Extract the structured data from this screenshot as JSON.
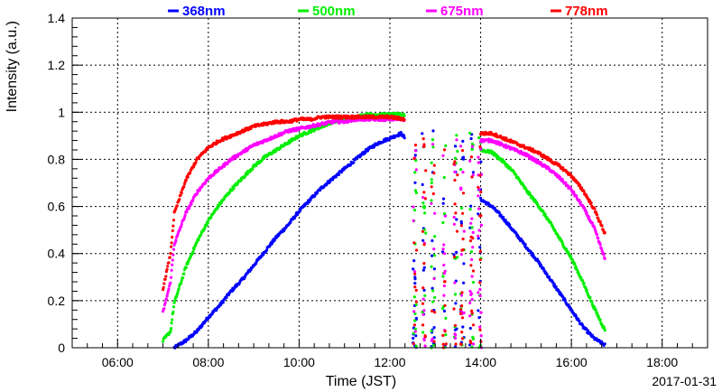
{
  "chart_data": {
    "type": "scatter",
    "title": "",
    "xlabel": "Time (JST)",
    "ylabel": "Intensity (a.u.)",
    "date_label": "2017-01-31",
    "xlim": [
      "05:00",
      "19:00"
    ],
    "ylim": [
      0,
      1.4
    ],
    "x_ticks": [
      "06:00",
      "08:00",
      "10:00",
      "12:00",
      "14:00",
      "16:00",
      "18:00"
    ],
    "y_ticks": [
      "0",
      "0.2",
      "0.4",
      "0.6",
      "0.8",
      "1",
      "1.2",
      "1.4"
    ],
    "grid": true,
    "legend_position": "top",
    "series": [
      {
        "name": "368nm",
        "color": "#0000ff",
        "points": [
          [
            "07:15",
            0.0
          ],
          [
            "07:30",
            0.03
          ],
          [
            "07:45",
            0.07
          ],
          [
            "08:00",
            0.13
          ],
          [
            "08:15",
            0.18
          ],
          [
            "08:30",
            0.24
          ],
          [
            "08:45",
            0.29
          ],
          [
            "09:00",
            0.35
          ],
          [
            "09:15",
            0.41
          ],
          [
            "09:30",
            0.47
          ],
          [
            "09:45",
            0.52
          ],
          [
            "10:00",
            0.58
          ],
          [
            "10:15",
            0.63
          ],
          [
            "10:30",
            0.68
          ],
          [
            "10:45",
            0.72
          ],
          [
            "11:00",
            0.76
          ],
          [
            "11:15",
            0.8
          ],
          [
            "11:30",
            0.84
          ],
          [
            "11:45",
            0.87
          ],
          [
            "12:00",
            0.89
          ],
          [
            "12:15",
            0.91
          ],
          [
            "12:20",
            0.89
          ],
          [
            "14:00",
            0.63
          ],
          [
            "14:15",
            0.6
          ],
          [
            "14:30",
            0.55
          ],
          [
            "14:45",
            0.49
          ],
          [
            "15:00",
            0.43
          ],
          [
            "15:15",
            0.37
          ],
          [
            "15:30",
            0.3
          ],
          [
            "15:45",
            0.23
          ],
          [
            "16:00",
            0.16
          ],
          [
            "16:15",
            0.09
          ],
          [
            "16:30",
            0.04
          ],
          [
            "16:45",
            0.01
          ]
        ]
      },
      {
        "name": "500nm",
        "color": "#00ee00",
        "points": [
          [
            "07:00",
            0.03
          ],
          [
            "07:10",
            0.07
          ],
          [
            "07:15",
            0.19
          ],
          [
            "07:30",
            0.34
          ],
          [
            "07:45",
            0.45
          ],
          [
            "08:00",
            0.54
          ],
          [
            "08:15",
            0.61
          ],
          [
            "08:30",
            0.67
          ],
          [
            "08:45",
            0.72
          ],
          [
            "09:00",
            0.77
          ],
          [
            "09:15",
            0.81
          ],
          [
            "09:30",
            0.84
          ],
          [
            "09:45",
            0.87
          ],
          [
            "10:00",
            0.9
          ],
          [
            "10:15",
            0.92
          ],
          [
            "10:30",
            0.94
          ],
          [
            "10:45",
            0.96
          ],
          [
            "11:00",
            0.97
          ],
          [
            "11:15",
            0.98
          ],
          [
            "11:30",
            0.99
          ],
          [
            "11:45",
            0.99
          ],
          [
            "12:00",
            0.99
          ],
          [
            "12:20",
            0.99
          ],
          [
            "14:00",
            0.84
          ],
          [
            "14:15",
            0.83
          ],
          [
            "14:30",
            0.79
          ],
          [
            "14:45",
            0.74
          ],
          [
            "15:00",
            0.67
          ],
          [
            "15:15",
            0.61
          ],
          [
            "15:30",
            0.54
          ],
          [
            "15:45",
            0.46
          ],
          [
            "16:00",
            0.38
          ],
          [
            "16:15",
            0.28
          ],
          [
            "16:30",
            0.17
          ],
          [
            "16:45",
            0.07
          ]
        ]
      },
      {
        "name": "675nm",
        "color": "#ff00ff",
        "points": [
          [
            "07:00",
            0.15
          ],
          [
            "07:10",
            0.28
          ],
          [
            "07:15",
            0.44
          ],
          [
            "07:30",
            0.57
          ],
          [
            "07:45",
            0.66
          ],
          [
            "08:00",
            0.72
          ],
          [
            "08:15",
            0.76
          ],
          [
            "08:30",
            0.8
          ],
          [
            "08:45",
            0.83
          ],
          [
            "09:00",
            0.86
          ],
          [
            "09:15",
            0.88
          ],
          [
            "09:30",
            0.9
          ],
          [
            "09:45",
            0.92
          ],
          [
            "10:00",
            0.93
          ],
          [
            "10:15",
            0.94
          ],
          [
            "10:30",
            0.95
          ],
          [
            "10:45",
            0.96
          ],
          [
            "11:00",
            0.96
          ],
          [
            "11:15",
            0.97
          ],
          [
            "11:30",
            0.97
          ],
          [
            "11:45",
            0.97
          ],
          [
            "12:00",
            0.97
          ],
          [
            "12:20",
            0.97
          ],
          [
            "14:00",
            0.88
          ],
          [
            "14:15",
            0.88
          ],
          [
            "14:30",
            0.86
          ],
          [
            "14:45",
            0.84
          ],
          [
            "15:00",
            0.82
          ],
          [
            "15:15",
            0.79
          ],
          [
            "15:30",
            0.76
          ],
          [
            "15:45",
            0.72
          ],
          [
            "16:00",
            0.67
          ],
          [
            "16:15",
            0.6
          ],
          [
            "16:30",
            0.51
          ],
          [
            "16:45",
            0.37
          ]
        ]
      },
      {
        "name": "778nm",
        "color": "#ff0000",
        "points": [
          [
            "07:00",
            0.25
          ],
          [
            "07:10",
            0.4
          ],
          [
            "07:15",
            0.57
          ],
          [
            "07:30",
            0.71
          ],
          [
            "07:45",
            0.8
          ],
          [
            "08:00",
            0.85
          ],
          [
            "08:15",
            0.88
          ],
          [
            "08:30",
            0.9
          ],
          [
            "08:45",
            0.92
          ],
          [
            "09:00",
            0.94
          ],
          [
            "09:15",
            0.95
          ],
          [
            "09:30",
            0.96
          ],
          [
            "09:45",
            0.96
          ],
          [
            "10:00",
            0.97
          ],
          [
            "10:15",
            0.97
          ],
          [
            "10:30",
            0.98
          ],
          [
            "10:45",
            0.98
          ],
          [
            "11:00",
            0.98
          ],
          [
            "11:15",
            0.98
          ],
          [
            "11:30",
            0.98
          ],
          [
            "11:45",
            0.98
          ],
          [
            "12:00",
            0.98
          ],
          [
            "12:20",
            0.97
          ],
          [
            "14:00",
            0.91
          ],
          [
            "14:15",
            0.91
          ],
          [
            "14:30",
            0.89
          ],
          [
            "14:45",
            0.87
          ],
          [
            "15:00",
            0.85
          ],
          [
            "15:15",
            0.83
          ],
          [
            "15:30",
            0.8
          ],
          [
            "15:45",
            0.77
          ],
          [
            "16:00",
            0.73
          ],
          [
            "16:15",
            0.67
          ],
          [
            "16:30",
            0.59
          ],
          [
            "16:45",
            0.48
          ]
        ]
      }
    ],
    "noisy_interval": [
      "12:20",
      "14:00"
    ]
  }
}
